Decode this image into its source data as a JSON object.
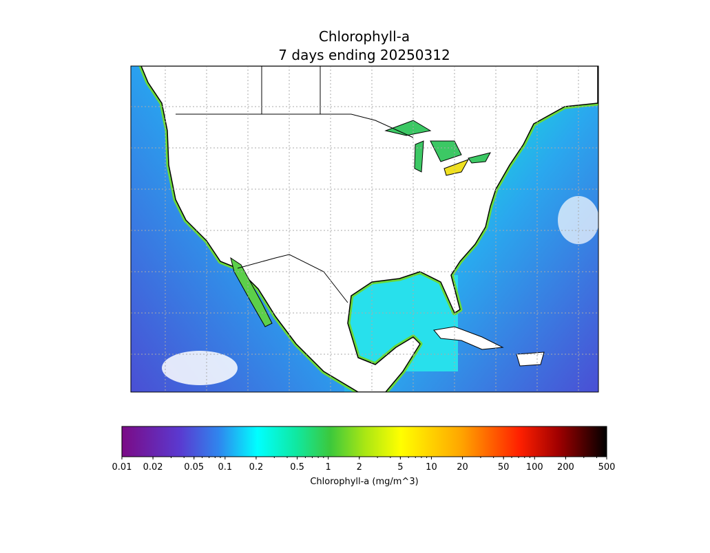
{
  "map": {
    "title_lines": [
      "Chlorophyll-a",
      "7 days ending 20250312"
    ]
  },
  "colorbar": {
    "label": "Chlorophyll-a (mg/m^3)",
    "log_scale": true,
    "lim": [
      0.01,
      500
    ],
    "ticks": [
      0.01,
      0.02,
      0.05,
      0.1,
      0.2,
      0.5,
      1,
      2,
      5,
      10,
      20,
      50,
      100,
      200,
      500
    ]
  }
}
